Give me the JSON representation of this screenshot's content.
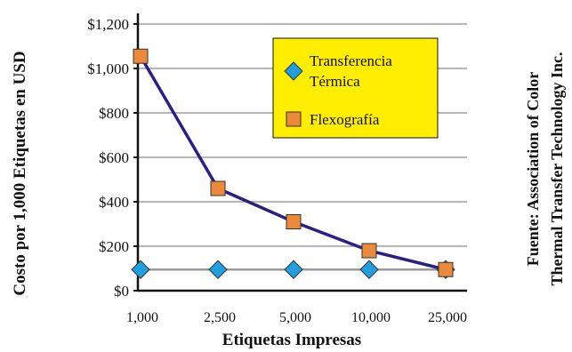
{
  "chart_data": {
    "type": "line",
    "categories": [
      "1,000",
      "2,500",
      "5,000",
      "10,000",
      "25,000"
    ],
    "xlabel": "Etiquetas Impresas",
    "ylabel": "Costo por 1,000 Etiquetas en USD",
    "ylim": [
      0,
      1200
    ],
    "yticks": [
      "$0",
      "$200",
      "$400",
      "$600",
      "$800",
      "$1,000",
      "$1,200"
    ],
    "grid": true,
    "legend_position": "top-right",
    "series": [
      {
        "name_lines": [
          "Transferencia",
          "Térmica"
        ],
        "name": "Transferencia Térmica",
        "values": [
          95,
          95,
          95,
          95,
          95
        ],
        "marker": "diamond",
        "marker_color": "#1f9fe0",
        "line_color": "#9a9a9a"
      },
      {
        "name_lines": [
          "Flexografía"
        ],
        "name": "Flexografía",
        "values": [
          1055,
          460,
          310,
          180,
          95
        ],
        "marker": "square",
        "marker_color": "#ea8a3a",
        "line_color": "#2a1f85"
      }
    ],
    "legend_bg": "#ffee00",
    "source_lines": [
      "Fuente: Association of Color",
      "Thermal Transfer Technology Inc."
    ]
  }
}
